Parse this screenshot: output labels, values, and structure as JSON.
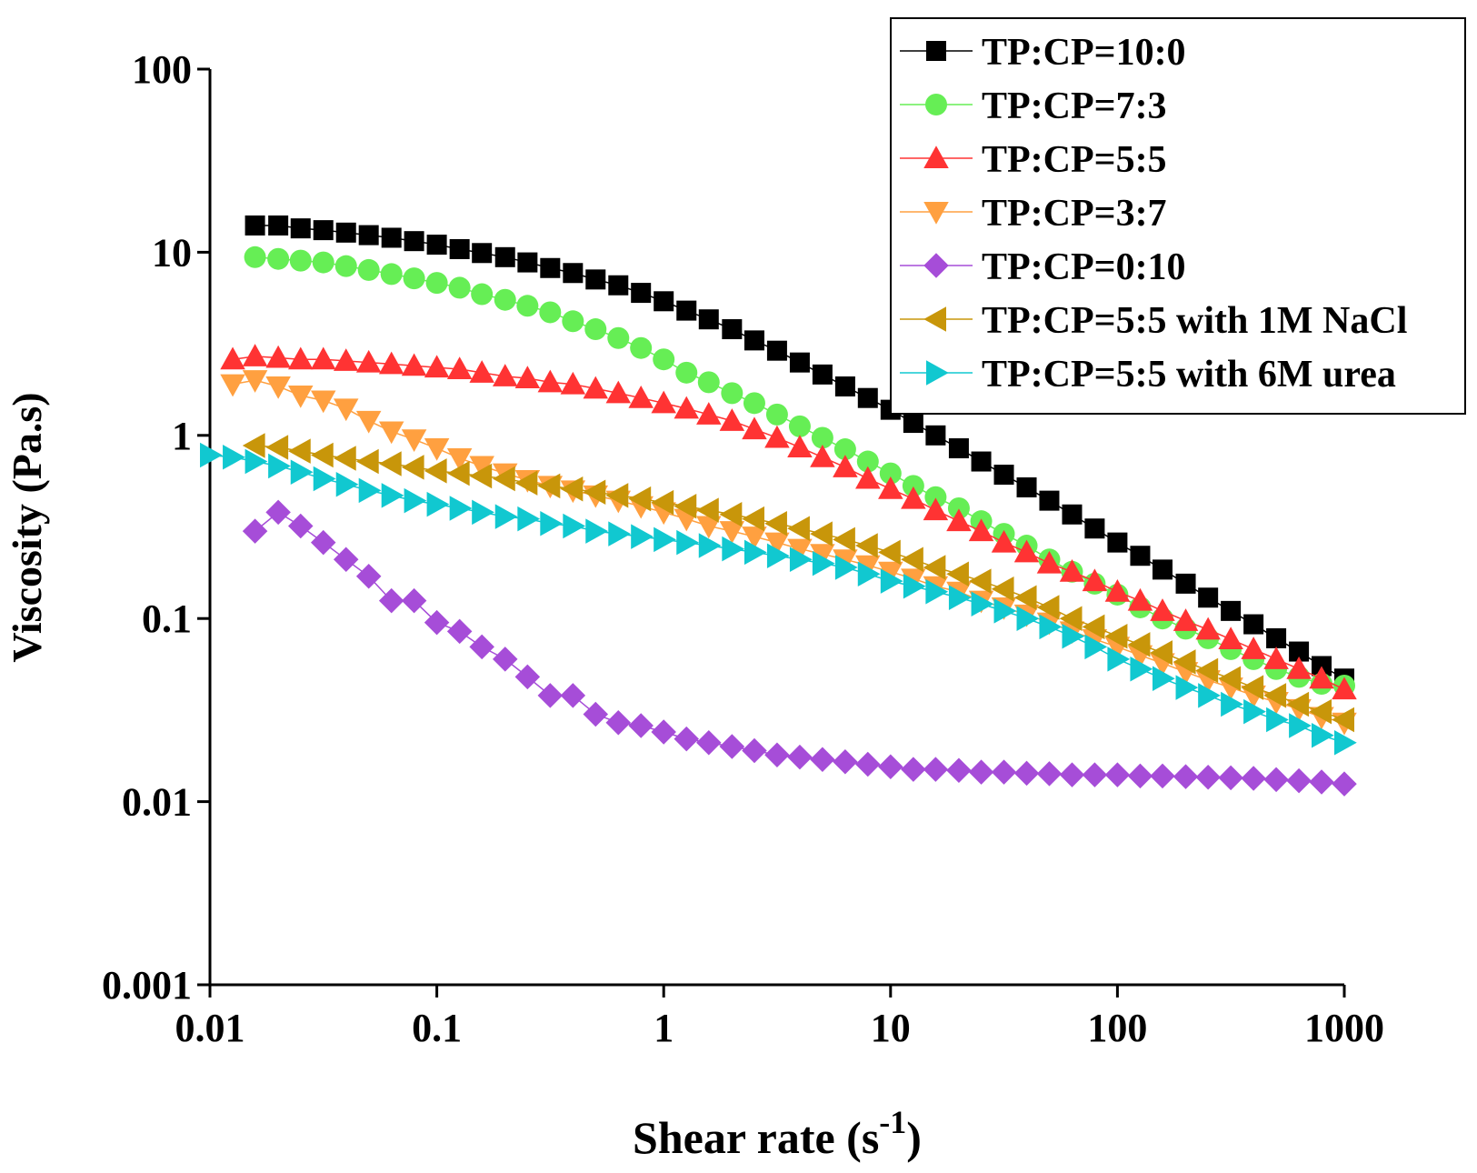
{
  "chart_data": {
    "type": "scatter",
    "xlabel": [
      "Shear rate (s",
      "-1",
      ")"
    ],
    "ylabel": "Viscosity (Pa.s)",
    "xscale": "log",
    "yscale": "log",
    "legend": "upper right",
    "grid": false,
    "xlim": [
      0.01,
      1000
    ],
    "xticks": [
      0.01,
      0.1,
      1,
      10,
      100,
      1000
    ],
    "ylim": [
      0.001,
      100
    ],
    "yticks": [
      0.001,
      0.01,
      0.1,
      1,
      10,
      100
    ],
    "x": [
      0.01,
      0.0126,
      0.0158,
      0.02,
      0.0251,
      0.0316,
      0.0398,
      0.0501,
      0.0631,
      0.0794,
      0.1,
      0.126,
      0.158,
      0.2,
      0.251,
      0.316,
      0.398,
      0.501,
      0.631,
      0.794,
      1,
      1.26,
      1.58,
      2,
      2.51,
      3.16,
      3.98,
      5.01,
      6.31,
      7.94,
      10,
      12.6,
      15.8,
      20,
      25.1,
      31.6,
      39.8,
      50.1,
      63.1,
      79.4,
      100,
      126,
      158,
      200,
      251,
      316,
      398,
      501,
      631,
      794,
      1000
    ],
    "series": [
      {
        "name": "TP:CP=10:0",
        "color": "#000000",
        "marker": "square",
        "values": [
          null,
          null,
          14,
          14,
          13.5,
          13.2,
          12.8,
          12.4,
          12,
          11.5,
          11,
          10.4,
          9.9,
          9.4,
          8.8,
          8.2,
          7.7,
          7.1,
          6.6,
          6,
          5.4,
          4.8,
          4.3,
          3.8,
          3.3,
          2.9,
          2.5,
          2.15,
          1.85,
          1.6,
          1.38,
          1.17,
          1,
          0.85,
          0.72,
          0.61,
          0.52,
          0.44,
          0.37,
          0.31,
          0.26,
          0.22,
          0.185,
          0.155,
          0.13,
          0.11,
          0.093,
          0.078,
          0.066,
          0.055,
          0.047
        ]
      },
      {
        "name": "TP:CP=7:3",
        "color": "#66ee55",
        "marker": "circle",
        "values": [
          null,
          null,
          9.4,
          9.2,
          9,
          8.8,
          8.4,
          8,
          7.6,
          7.2,
          6.8,
          6.4,
          5.9,
          5.5,
          5.1,
          4.7,
          4.2,
          3.8,
          3.4,
          3,
          2.6,
          2.2,
          1.95,
          1.7,
          1.5,
          1.3,
          1.12,
          0.97,
          0.84,
          0.72,
          0.62,
          0.53,
          0.46,
          0.4,
          0.34,
          0.29,
          0.25,
          0.21,
          0.18,
          0.155,
          0.135,
          0.115,
          0.1,
          0.088,
          0.078,
          0.068,
          0.06,
          0.053,
          0.048,
          0.044,
          0.043
        ]
      },
      {
        "name": "TP:CP=5:5",
        "color": "#ff3333",
        "marker": "triangle-up",
        "values": [
          null,
          2.6,
          2.7,
          2.65,
          2.6,
          2.6,
          2.55,
          2.5,
          2.45,
          2.4,
          2.35,
          2.3,
          2.2,
          2.1,
          2.05,
          1.95,
          1.9,
          1.8,
          1.7,
          1.6,
          1.5,
          1.4,
          1.3,
          1.2,
          1.08,
          0.97,
          0.86,
          0.76,
          0.67,
          0.58,
          0.51,
          0.45,
          0.39,
          0.34,
          0.3,
          0.26,
          0.23,
          0.2,
          0.18,
          0.16,
          0.14,
          0.125,
          0.11,
          0.097,
          0.087,
          0.077,
          0.068,
          0.06,
          0.053,
          0.047,
          0.041
        ]
      },
      {
        "name": "TP:CP=3:7",
        "color": "#ffa040",
        "marker": "triangle-down",
        "values": [
          null,
          1.9,
          2.0,
          1.85,
          1.65,
          1.55,
          1.4,
          1.2,
          1.05,
          0.95,
          0.85,
          0.75,
          0.68,
          0.62,
          0.57,
          0.53,
          0.5,
          0.47,
          0.44,
          0.41,
          0.38,
          0.35,
          0.32,
          0.3,
          0.28,
          0.26,
          0.24,
          0.225,
          0.21,
          0.195,
          0.18,
          0.165,
          0.15,
          0.14,
          0.125,
          0.115,
          0.105,
          0.095,
          0.085,
          0.077,
          0.07,
          0.063,
          0.057,
          0.051,
          0.046,
          0.042,
          0.038,
          0.035,
          0.032,
          0.029,
          0.027
        ]
      },
      {
        "name": "TP:CP=0:10",
        "color": "#a64dd8",
        "marker": "diamond",
        "values": [
          null,
          null,
          0.3,
          0.38,
          0.32,
          0.26,
          0.21,
          0.17,
          0.125,
          0.125,
          0.095,
          0.085,
          0.07,
          0.06,
          0.048,
          0.038,
          0.038,
          0.03,
          0.027,
          0.026,
          0.024,
          0.022,
          0.021,
          0.02,
          0.019,
          0.018,
          0.0175,
          0.017,
          0.0165,
          0.016,
          0.0155,
          0.015,
          0.015,
          0.0148,
          0.0145,
          0.0145,
          0.0143,
          0.0142,
          0.014,
          0.014,
          0.014,
          0.0138,
          0.0138,
          0.0137,
          0.0136,
          0.0135,
          0.0134,
          0.0132,
          0.013,
          0.0128,
          0.0125
        ]
      },
      {
        "name": "TP:CP=5:5 with 1M NaCl",
        "color": "#c8960a",
        "marker": "triangle-left",
        "values": [
          null,
          null,
          0.88,
          0.86,
          0.82,
          0.78,
          0.75,
          0.72,
          0.7,
          0.67,
          0.64,
          0.62,
          0.6,
          0.58,
          0.55,
          0.53,
          0.51,
          0.49,
          0.47,
          0.45,
          0.43,
          0.41,
          0.39,
          0.37,
          0.35,
          0.33,
          0.31,
          0.29,
          0.27,
          0.25,
          0.23,
          0.21,
          0.19,
          0.175,
          0.16,
          0.145,
          0.13,
          0.115,
          0.1,
          0.09,
          0.08,
          0.072,
          0.065,
          0.058,
          0.052,
          0.047,
          0.042,
          0.038,
          0.034,
          0.031,
          0.028
        ]
      },
      {
        "name": "TP:CP=5:5 with 6M urea",
        "color": "#11c8d0",
        "marker": "triangle-right",
        "values": [
          0.78,
          0.76,
          0.72,
          0.68,
          0.63,
          0.58,
          0.54,
          0.5,
          0.47,
          0.44,
          0.42,
          0.4,
          0.38,
          0.36,
          0.35,
          0.33,
          0.32,
          0.3,
          0.29,
          0.28,
          0.27,
          0.26,
          0.25,
          0.24,
          0.23,
          0.22,
          0.21,
          0.2,
          0.19,
          0.175,
          0.16,
          0.15,
          0.14,
          0.13,
          0.12,
          0.11,
          0.1,
          0.09,
          0.08,
          0.07,
          0.06,
          0.053,
          0.047,
          0.042,
          0.038,
          0.034,
          0.031,
          0.028,
          0.026,
          0.023,
          0.021
        ]
      }
    ]
  }
}
